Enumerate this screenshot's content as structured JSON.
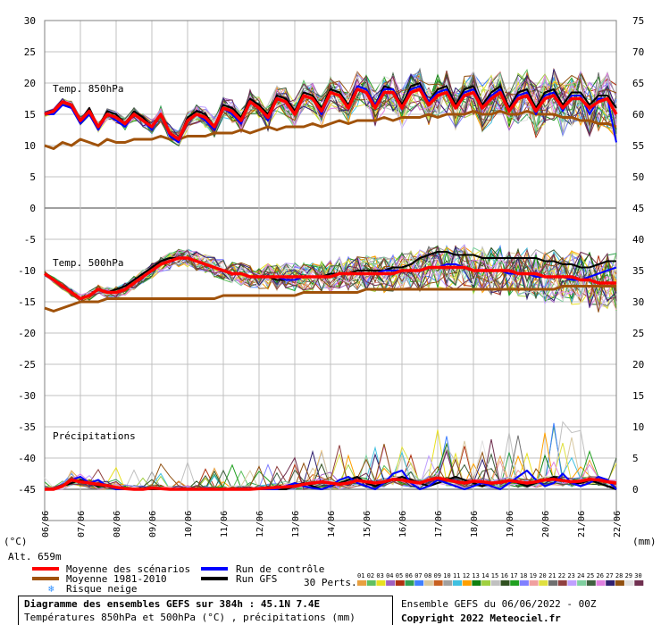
{
  "chart_data": {
    "type": "line",
    "title": "Diagramme des ensembles GEFS sur 384h : 45.1N 7.4E",
    "subtitle": "Températures 850hPa et 500hPa (°C) , précipitations (mm)",
    "xlabel": "",
    "x_ticks": [
      "06/06",
      "07/06",
      "08/06",
      "09/06",
      "10/06",
      "11/06",
      "12/06",
      "13/06",
      "14/06",
      "15/06",
      "16/06",
      "17/06",
      "18/06",
      "19/06",
      "20/06",
      "21/06",
      "22/06"
    ],
    "left_axis": {
      "label": "(°C)",
      "ticks": [
        "30",
        "25",
        "20",
        "15",
        "10",
        "5",
        "0",
        "-5",
        "-10",
        "-15",
        "-20",
        "-25",
        "-30",
        "-35",
        "-40",
        "-45"
      ],
      "ylim": [
        -50,
        30
      ]
    },
    "right_axis": {
      "label": "(mm)",
      "ticks": [
        "75",
        "70",
        "65",
        "60",
        "55",
        "50",
        "45",
        "40",
        "35",
        "30",
        "25",
        "20",
        "15",
        "10",
        "5",
        "0"
      ]
    },
    "panels": [
      {
        "name": "Temp. 850hPa",
        "unit": "°C",
        "mean_scenarios": [
          15,
          15.5,
          17,
          16.5,
          14,
          15.5,
          13,
          15,
          14.5,
          13.5,
          15,
          14,
          13,
          15,
          12,
          11,
          14,
          15,
          14.5,
          13,
          16,
          15.5,
          14,
          17,
          16,
          14.5,
          17.5,
          17,
          15,
          18,
          17.5,
          15.5,
          18.5,
          18,
          16,
          19,
          18.5,
          16,
          18.5,
          18.5,
          16,
          18.5,
          19,
          16.5,
          18,
          18.5,
          16,
          18,
          18.5,
          16,
          17.5,
          18.5,
          15.5,
          17.5,
          18,
          15.5,
          17.5,
          18,
          16,
          17.5,
          17.5,
          16,
          17,
          17.5,
          15
        ],
        "climatology_1981_2010": [
          10,
          9.5,
          10.5,
          10,
          11,
          10.5,
          10,
          11,
          10.5,
          10.5,
          11,
          11,
          11,
          11.5,
          11,
          11,
          11.5,
          11.5,
          11.5,
          12,
          12,
          12,
          12.5,
          12,
          12.5,
          13,
          12.5,
          13,
          13,
          13,
          13.5,
          13,
          13.5,
          14,
          13.5,
          14,
          14,
          14,
          14.5,
          14,
          14.5,
          14.5,
          14.5,
          15,
          14.5,
          15,
          15,
          15,
          15.5,
          15,
          15,
          15.5,
          15,
          15,
          15.5,
          15,
          15,
          15,
          14.5,
          14.5,
          14,
          14,
          13.5,
          13.5,
          13
        ],
        "control_run": [
          15,
          15,
          16.5,
          16,
          13.5,
          15,
          12.5,
          15,
          14,
          13,
          15,
          14,
          12.5,
          15,
          11.5,
          10.5,
          14,
          15,
          14,
          12.5,
          16,
          15,
          13.5,
          17,
          16,
          14,
          17.5,
          17,
          15,
          18,
          17.5,
          15,
          18.5,
          18,
          16,
          19.5,
          19,
          16.5,
          19,
          19,
          16,
          19,
          19.5,
          17,
          18.5,
          19,
          16,
          18.5,
          19,
          16,
          18,
          19,
          15.5,
          18,
          18.5,
          15,
          18,
          18.5,
          15.5,
          18,
          18,
          15,
          17.5,
          17.5,
          10.5
        ],
        "gfs_run": [
          15,
          15.5,
          17,
          16.5,
          14,
          16,
          13,
          15.5,
          15,
          13.5,
          15.5,
          14.5,
          13,
          15,
          12,
          11,
          14.5,
          15.5,
          15,
          13,
          16.5,
          16,
          14.5,
          17.5,
          16.5,
          15,
          18,
          17.5,
          15.5,
          18.5,
          18,
          16,
          19,
          18.5,
          16.5,
          19.5,
          19,
          16.5,
          19.5,
          19,
          16.5,
          19.5,
          20,
          17,
          19,
          19.5,
          16.5,
          19,
          19.5,
          16.5,
          18.5,
          19.5,
          16,
          18.5,
          19,
          16,
          18.5,
          19,
          16.5,
          18.5,
          18.5,
          16.5,
          18,
          18,
          16
        ]
      },
      {
        "name": "Temp. 500hPa",
        "unit": "°C",
        "mean_scenarios": [
          -10.5,
          -11.5,
          -12.5,
          -13.5,
          -14.5,
          -14,
          -13,
          -13.5,
          -13.5,
          -13,
          -12,
          -11,
          -10,
          -9,
          -8.5,
          -8,
          -8,
          -8.5,
          -9,
          -9.5,
          -10,
          -10.5,
          -10.5,
          -11,
          -11,
          -11,
          -11,
          -11,
          -11,
          -11,
          -11,
          -11,
          -11,
          -10.5,
          -10.5,
          -10.5,
          -10.5,
          -10.5,
          -10.5,
          -10.5,
          -10,
          -10,
          -10,
          -9.5,
          -9.5,
          -9.5,
          -9.5,
          -9.5,
          -10,
          -10,
          -10,
          -10,
          -10,
          -10.5,
          -10.5,
          -10.5,
          -11,
          -11,
          -11,
          -11,
          -11.5,
          -11.5,
          -12,
          -12,
          -12
        ],
        "climatology_1981_2010": [
          -16,
          -16.5,
          -16,
          -15.5,
          -15,
          -15,
          -15,
          -14.5,
          -14.5,
          -14.5,
          -14.5,
          -14.5,
          -14.5,
          -14.5,
          -14.5,
          -14.5,
          -14.5,
          -14.5,
          -14.5,
          -14.5,
          -14,
          -14,
          -14,
          -14,
          -14,
          -14,
          -14,
          -14,
          -14,
          -13.5,
          -13.5,
          -13.5,
          -13.5,
          -13.5,
          -13.5,
          -13.5,
          -13,
          -13,
          -13,
          -13,
          -13,
          -13,
          -13,
          -13,
          -13,
          -13,
          -13,
          -13,
          -13,
          -13,
          -13,
          -13,
          -13,
          -13,
          -13,
          -13,
          -13,
          -13,
          -12.5,
          -12.5,
          -12.5,
          -12.5,
          -12.5,
          -12.5,
          -12.5
        ],
        "control_run": [
          -10.5,
          -11.5,
          -12.5,
          -13.5,
          -14.5,
          -14,
          -13,
          -13.5,
          -13.5,
          -13,
          -12,
          -11,
          -10,
          -9,
          -8.5,
          -8,
          -8,
          -8.5,
          -9,
          -9.5,
          -10,
          -10.5,
          -10.5,
          -11,
          -11,
          -11,
          -11,
          -11.5,
          -11.5,
          -11,
          -11,
          -11,
          -11,
          -10.5,
          -10.5,
          -10.5,
          -10.5,
          -10.5,
          -10,
          -10,
          -10,
          -10,
          -10,
          -9.5,
          -9.5,
          -9,
          -9,
          -9.5,
          -10,
          -10,
          -10,
          -10,
          -10.5,
          -10.5,
          -10.5,
          -11,
          -11,
          -11,
          -11,
          -11.5,
          -11.5,
          -11,
          -10.5,
          -10,
          -9.5
        ],
        "gfs_run": [
          -10.5,
          -11.5,
          -12.5,
          -13.5,
          -14.5,
          -14,
          -13,
          -13.5,
          -13,
          -12.5,
          -11.5,
          -10.5,
          -9.5,
          -8.5,
          -8,
          -8,
          -8,
          -8.5,
          -9,
          -9.5,
          -10,
          -10.5,
          -10.5,
          -11,
          -11,
          -11,
          -11.5,
          -11.5,
          -11.5,
          -11,
          -11,
          -11,
          -10.5,
          -10.5,
          -10.5,
          -10,
          -10,
          -10,
          -10,
          -9.5,
          -9.5,
          -9,
          -8,
          -7.5,
          -7,
          -7,
          -7.5,
          -7.5,
          -7.5,
          -8,
          -8,
          -8,
          -8,
          -8,
          -8,
          -8,
          -8.5,
          -8.5,
          -9,
          -9,
          -9.5,
          -9.5,
          -9,
          -8.5,
          -8.5
        ]
      },
      {
        "name": "Précipitations",
        "unit": "mm",
        "mean_scenarios": [
          0,
          0,
          0.5,
          1.5,
          1.2,
          1,
          0.8,
          0.6,
          0.3,
          0.1,
          0,
          0,
          0.2,
          0.1,
          0,
          0,
          0,
          0,
          0,
          0,
          0,
          0,
          0,
          0,
          0.1,
          0.2,
          0.3,
          0.4,
          0.5,
          0.8,
          1.0,
          1.2,
          1.0,
          0.8,
          1.0,
          1.4,
          1.2,
          1.0,
          1.2,
          1.6,
          1.5,
          1.2,
          1.0,
          1.5,
          1.8,
          1.5,
          1.2,
          1.0,
          1.3,
          1.2,
          1.0,
          1.1,
          1.4,
          1.2,
          1.0,
          1.2,
          1.5,
          1.6,
          1.4,
          1.2,
          1.3,
          1.6,
          1.5,
          1.2,
          1.0
        ],
        "control_run": [
          0,
          0,
          0.5,
          1.5,
          2,
          1,
          1.5,
          0.5,
          0,
          0,
          0,
          0,
          0.2,
          0,
          0,
          0,
          0,
          0,
          0,
          0,
          0,
          0,
          0,
          0,
          0,
          0,
          0,
          0.5,
          1,
          0.5,
          0.2,
          0,
          0.5,
          1.5,
          2,
          1,
          0.5,
          0,
          1,
          2.5,
          3,
          1,
          0,
          0.5,
          1.5,
          1,
          0.5,
          0,
          0.5,
          1,
          0.5,
          0,
          1,
          2,
          3,
          1.5,
          0.5,
          1,
          2.5,
          1,
          0.5,
          1,
          2,
          1.5,
          0
        ],
        "gfs_run": [
          0,
          0,
          0.5,
          1,
          1.5,
          1,
          0.5,
          0.5,
          0,
          0,
          0,
          0,
          0,
          0,
          0,
          0,
          0,
          0,
          0,
          0,
          0,
          0,
          0,
          0,
          0,
          0,
          0,
          0,
          0.5,
          1,
          0.5,
          0,
          0.5,
          1,
          1.5,
          2,
          1,
          0.5,
          1,
          1.5,
          2,
          1.5,
          1,
          0.5,
          1,
          1.5,
          2,
          1.5,
          1,
          0.5,
          1,
          1,
          1.5,
          1,
          0.5,
          1,
          1.5,
          2,
          1.5,
          1,
          1,
          1.5,
          1,
          0.5,
          0
        ]
      }
    ],
    "series_colors": {
      "mean_scenarios": "#ff0000",
      "climatology_1981_2010": "#a0520a",
      "control_run": "#0000ff",
      "gfs_run": "#000000"
    },
    "perturbation_count": 30,
    "perturbation_colors": [
      "#e8a040",
      "#60c060",
      "#e8e020",
      "#a060c0",
      "#b03010",
      "#30a050",
      "#4080ff",
      "#d8c8a0",
      "#c86020",
      "#a0a0a0",
      "#40c0e0",
      "#ffa000",
      "#108010",
      "#a0d040",
      "#c0c0c0",
      "#305020",
      "#20a020",
      "#8080ff",
      "#f0a0a0",
      "#e0e040",
      "#707070",
      "#904040",
      "#c0a0ff",
      "#80d0a0",
      "#406040",
      "#e080e0",
      "#302070",
      "#905010",
      "#e0e0e0",
      "#703050"
    ]
  },
  "legend": {
    "alt_label": "Alt. 659m",
    "mean_label": "Moyenne des scénarios",
    "clim_label": "Moyenne 1981-2010",
    "snow_label": "Risque neige",
    "control_label": "Run de contrôle",
    "gfs_label": "Run GFS",
    "perts_label": "30 Perts.",
    "pert_numbers": [
      "01",
      "02",
      "03",
      "04",
      "05",
      "06",
      "07",
      "08",
      "09",
      "10",
      "11",
      "12",
      "13",
      "14",
      "15",
      "16",
      "17",
      "18",
      "19",
      "20",
      "21",
      "22",
      "23",
      "24",
      "25",
      "26",
      "27",
      "28",
      "29",
      "30"
    ]
  },
  "footer": {
    "title": "Diagramme des ensembles GEFS sur 384h : 45.1N 7.4E",
    "subtitle": "Températures 850hPa et 500hPa (°C) , précipitations (mm)",
    "run_info": "Ensemble GEFS du 06/06/2022 - 00Z",
    "copyright": "Copyright 2022 Meteociel.fr"
  },
  "colors": {
    "grid": "#c0c0c0",
    "background": "#ffffff"
  }
}
